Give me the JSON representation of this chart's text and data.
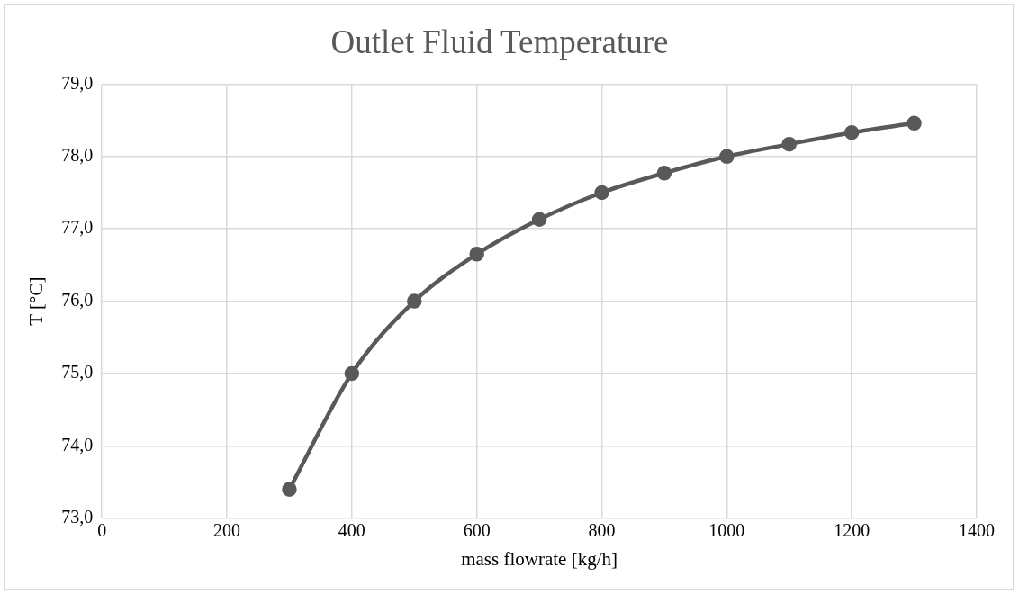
{
  "chart_data": {
    "type": "line",
    "title": "Outlet Fluid Temperature",
    "xlabel": "mass flowrate [kg/h]",
    "ylabel": "T [°C]",
    "x": [
      300,
      400,
      500,
      600,
      700,
      800,
      900,
      1000,
      1100,
      1200,
      1300
    ],
    "series": [
      {
        "color": "#595959",
        "values": [
          73.4,
          75.0,
          76.0,
          76.65,
          77.13,
          77.5,
          77.77,
          78.0,
          78.17,
          78.33,
          78.46
        ]
      }
    ],
    "xlim": [
      0,
      1400
    ],
    "xticks": [
      0,
      200,
      400,
      600,
      800,
      1000,
      1200,
      1400
    ],
    "ylim": [
      73,
      79
    ],
    "yticks": [
      {
        "value": 73,
        "label": "73,0"
      },
      {
        "value": 74,
        "label": "74,0"
      },
      {
        "value": 75,
        "label": "75,0"
      },
      {
        "value": 76,
        "label": "76,0"
      },
      {
        "value": 77,
        "label": "77,0"
      },
      {
        "value": 78,
        "label": "78,0"
      },
      {
        "value": 79,
        "label": "79,0"
      }
    ],
    "grid": true,
    "legend": false,
    "marker": "circle",
    "line_style": "solid"
  }
}
